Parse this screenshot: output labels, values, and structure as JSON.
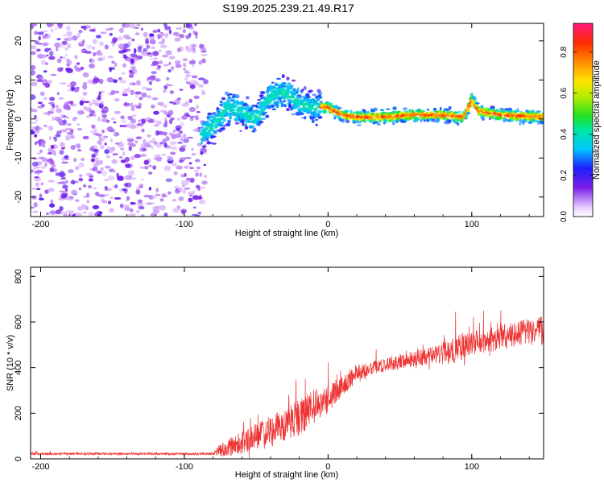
{
  "title": "S199.2025.239.21.49.R17",
  "chart_data": [
    {
      "type": "heatmap",
      "title": "S199.2025.239.21.49.R17",
      "xlabel": "Height of straight line (km)",
      "ylabel": "Frequency (Hz)",
      "xlim": [
        -207,
        150
      ],
      "ylim": [
        -25,
        24.5
      ],
      "xticks": [
        -200,
        -100,
        0,
        100
      ],
      "yticks": [
        -20,
        -10,
        0,
        10,
        20
      ],
      "colorbar": {
        "label": "Normalized spectral amplitude",
        "range": [
          0,
          0.94
        ],
        "ticks": [
          0.0,
          0.2,
          0.4,
          0.6,
          0.8
        ]
      },
      "features": {
        "noise_region_x": [
          -207,
          -85
        ],
        "signal_onset_x": -88,
        "centerline": [
          [
            -88,
            -4
          ],
          [
            -78,
            -1
          ],
          [
            -70,
            3
          ],
          [
            -60,
            2
          ],
          [
            -50,
            0
          ],
          [
            -40,
            6
          ],
          [
            -30,
            7
          ],
          [
            -20,
            4
          ],
          [
            -10,
            3
          ],
          [
            0,
            3
          ],
          [
            10,
            1
          ],
          [
            20,
            0.5
          ],
          [
            40,
            0.5
          ],
          [
            60,
            1
          ],
          [
            80,
            1
          ],
          [
            95,
            0.5
          ],
          [
            100,
            5
          ],
          [
            105,
            2
          ],
          [
            120,
            1
          ],
          [
            150,
            0.5
          ]
        ]
      }
    },
    {
      "type": "line",
      "xlabel": "Height of straight line (km)",
      "ylabel": "SNR (10 * v/v)",
      "xlim": [
        -207,
        150
      ],
      "ylim": [
        0,
        840
      ],
      "xticks": [
        -200,
        -100,
        0,
        100
      ],
      "yticks": [
        0,
        200,
        400,
        600,
        800
      ],
      "series": [
        {
          "name": "SNR",
          "color": "#ee3333",
          "envelope_x": [
            -207,
            -80,
            -75,
            -60,
            -40,
            -20,
            -10,
            0,
            10,
            20,
            30,
            40,
            60,
            80,
            90,
            100,
            120,
            140,
            150
          ],
          "envelope_mean": [
            22,
            22,
            40,
            70,
            120,
            180,
            230,
            260,
            330,
            370,
            400,
            410,
            440,
            460,
            480,
            510,
            530,
            560,
            560
          ],
          "envelope_spread": [
            10,
            10,
            60,
            100,
            140,
            160,
            150,
            120,
            100,
            80,
            60,
            60,
            70,
            90,
            130,
            110,
            110,
            120,
            130
          ]
        }
      ]
    }
  ]
}
